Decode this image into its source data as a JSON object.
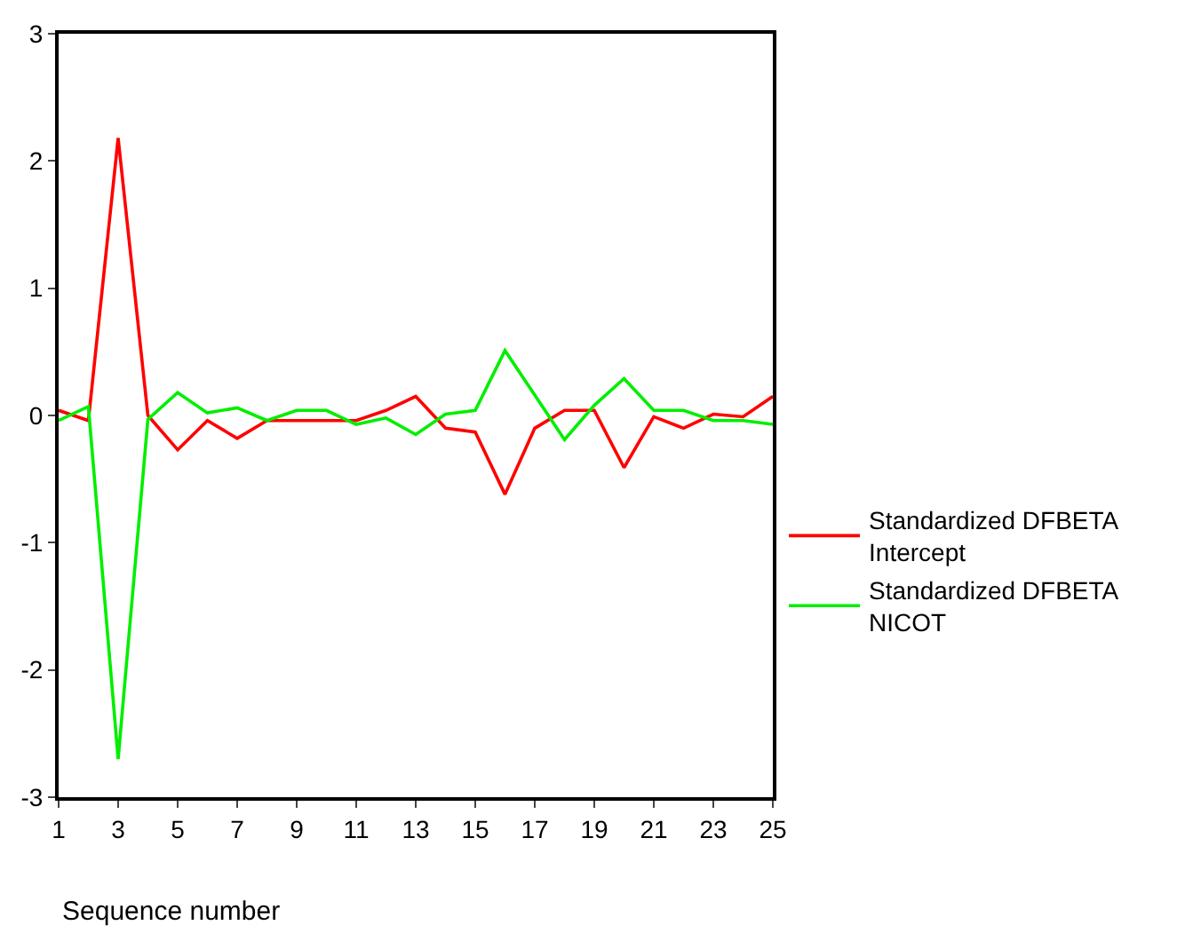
{
  "chart_data": {
    "type": "line",
    "xlabel": "Sequence number",
    "x": [
      1,
      2,
      3,
      4,
      5,
      6,
      7,
      8,
      9,
      10,
      11,
      12,
      13,
      14,
      15,
      16,
      17,
      18,
      19,
      20,
      21,
      22,
      23,
      24,
      25
    ],
    "series": [
      {
        "name": "Standardized DFBETA Intercept",
        "color": "#ff0000",
        "values": [
          0.04,
          -0.04,
          2.18,
          0.0,
          -0.27,
          -0.04,
          -0.18,
          -0.04,
          -0.04,
          -0.04,
          -0.04,
          0.04,
          0.15,
          -0.1,
          -0.13,
          -0.62,
          -0.1,
          0.04,
          0.04,
          -0.41,
          -0.01,
          -0.1,
          0.01,
          -0.01,
          0.15
        ]
      },
      {
        "name": "Standardized DFBETA NICOT",
        "color": "#00ee00",
        "values": [
          -0.04,
          0.07,
          -2.7,
          -0.03,
          0.18,
          0.02,
          0.06,
          -0.04,
          0.04,
          0.04,
          -0.07,
          -0.02,
          -0.15,
          0.01,
          0.04,
          0.51,
          0.16,
          -0.19,
          0.08,
          0.29,
          0.04,
          0.04,
          -0.04,
          -0.04,
          -0.07
        ]
      }
    ],
    "xlim": [
      1,
      25
    ],
    "xticks": [
      1,
      3,
      5,
      7,
      9,
      11,
      13,
      15,
      17,
      19,
      21,
      23,
      25
    ],
    "ylim": [
      -3,
      3
    ],
    "yticks": [
      -3,
      -2,
      -1,
      0,
      1,
      2,
      3
    ],
    "grid": false,
    "legend": "right",
    "marker": "none",
    "line_style": "solid"
  }
}
